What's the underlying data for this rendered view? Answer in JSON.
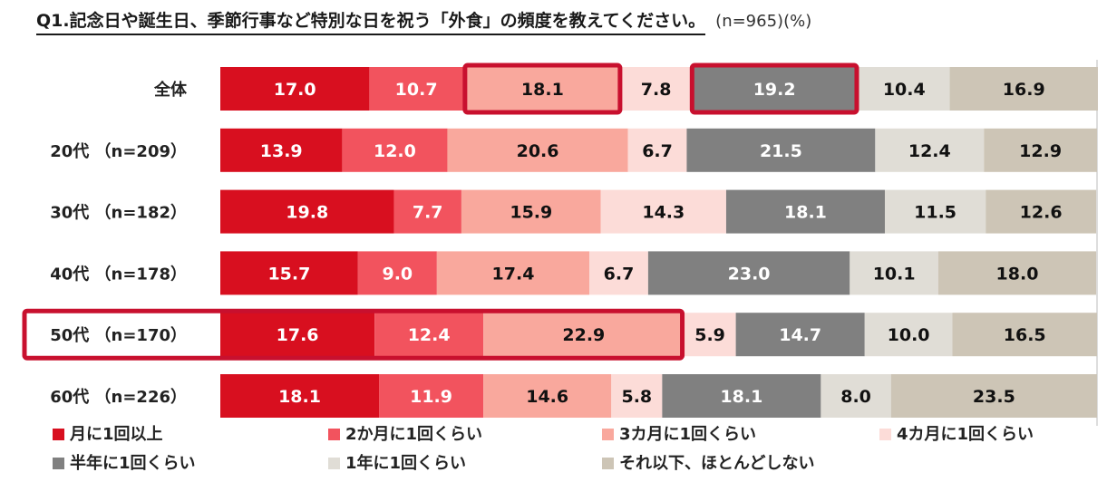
{
  "header": {
    "title": "Q1.記念日や誕生日、季節行事など特別な日を祝う「外食」の頻度を教えてください。",
    "subtitle": "(n=965)(%)"
  },
  "colors": {
    "series": [
      "#d80f1f",
      "#f2535e",
      "#f9a89d",
      "#fcdcd8",
      "#808080",
      "#e0ddd6",
      "#cdc5b6"
    ],
    "highlight": "#c8102e",
    "dark_label_text": "#111111",
    "light_label_text": "#ffffff"
  },
  "chart_data": {
    "type": "bar",
    "orientation": "horizontal",
    "stacked": "100%",
    "categories": [
      "全体",
      "20代 （n=209）",
      "30代 （n=182）",
      "40代 （n=178）",
      "50代 （n=170）",
      "60代 （n=226）"
    ],
    "series": [
      {
        "name": "月に1回以上",
        "values": [
          17.0,
          13.9,
          19.8,
          15.7,
          17.6,
          18.1
        ]
      },
      {
        "name": "2か月に1回くらい",
        "values": [
          10.7,
          12.0,
          7.7,
          9.0,
          12.4,
          11.9
        ]
      },
      {
        "name": "3カ月に1回くらい",
        "values": [
          18.1,
          20.6,
          15.9,
          17.4,
          22.9,
          14.6
        ]
      },
      {
        "name": "4カ月に1回くらい",
        "values": [
          7.8,
          6.7,
          14.3,
          6.7,
          5.9,
          5.8
        ]
      },
      {
        "name": "半年に1回くらい",
        "values": [
          19.2,
          21.5,
          18.1,
          23.0,
          14.7,
          18.1
        ]
      },
      {
        "name": "1年に1回くらい",
        "values": [
          10.4,
          12.4,
          11.5,
          10.1,
          10.0,
          8.0
        ]
      },
      {
        "name": "それ以下、ほとんどしない",
        "values": [
          16.9,
          12.9,
          12.6,
          18.0,
          16.5,
          23.5
        ]
      }
    ],
    "xlim": [
      0,
      100
    ],
    "legend_position": "bottom",
    "highlights": [
      {
        "category": 0,
        "series_start": 2,
        "series_end": 2
      },
      {
        "category": 0,
        "series_start": 4,
        "series_end": 4
      },
      {
        "category": 4,
        "series_start": 0,
        "series_end": 2,
        "include_label": true
      }
    ]
  }
}
